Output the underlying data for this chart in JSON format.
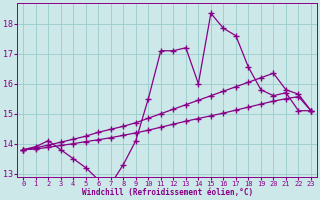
{
  "line1_x": [
    0,
    1,
    2,
    3,
    4,
    5,
    6,
    7,
    8,
    9,
    10,
    11,
    12,
    13,
    14,
    15,
    16,
    17,
    18,
    19,
    20,
    21,
    22,
    23
  ],
  "line1_y": [
    13.8,
    13.9,
    14.1,
    13.8,
    13.5,
    13.2,
    12.8,
    12.65,
    13.3,
    14.1,
    15.5,
    17.1,
    17.1,
    17.2,
    16.0,
    18.35,
    17.85,
    17.6,
    16.55,
    15.8,
    15.6,
    15.7,
    15.1,
    15.1
  ],
  "line2_x": [
    0,
    1,
    2,
    3,
    4,
    5,
    6,
    7,
    8,
    9,
    10,
    11,
    12,
    13,
    14,
    15,
    16,
    17,
    18,
    19,
    20,
    21,
    22,
    23
  ],
  "line2_y": [
    13.8,
    13.87,
    13.95,
    14.05,
    14.15,
    14.25,
    14.38,
    14.48,
    14.58,
    14.7,
    14.85,
    15.0,
    15.15,
    15.3,
    15.45,
    15.6,
    15.75,
    15.9,
    16.05,
    16.2,
    16.35,
    15.8,
    15.65,
    15.1
  ],
  "line3_x": [
    0,
    1,
    2,
    3,
    4,
    5,
    6,
    7,
    8,
    9,
    10,
    11,
    12,
    13,
    14,
    15,
    16,
    17,
    18,
    19,
    20,
    21,
    22,
    23
  ],
  "line3_y": [
    13.8,
    13.82,
    13.88,
    13.94,
    14.0,
    14.07,
    14.13,
    14.2,
    14.28,
    14.36,
    14.45,
    14.55,
    14.65,
    14.75,
    14.84,
    14.93,
    15.02,
    15.12,
    15.22,
    15.32,
    15.42,
    15.5,
    15.57,
    15.1
  ],
  "line_color": "#880088",
  "bg_color": "#cce8e8",
  "grid_color": "#99cccc",
  "xlabel": "Windchill (Refroidissement éolien,°C)",
  "ylim": [
    12.9,
    18.7
  ],
  "xlim": [
    -0.5,
    23.5
  ],
  "yticks": [
    13,
    14,
    15,
    16,
    17,
    18
  ],
  "xticks": [
    0,
    1,
    2,
    3,
    4,
    5,
    6,
    7,
    8,
    9,
    10,
    11,
    12,
    13,
    14,
    15,
    16,
    17,
    18,
    19,
    20,
    21,
    22,
    23
  ],
  "marker": "+",
  "markersize": 4,
  "linewidth": 0.9
}
